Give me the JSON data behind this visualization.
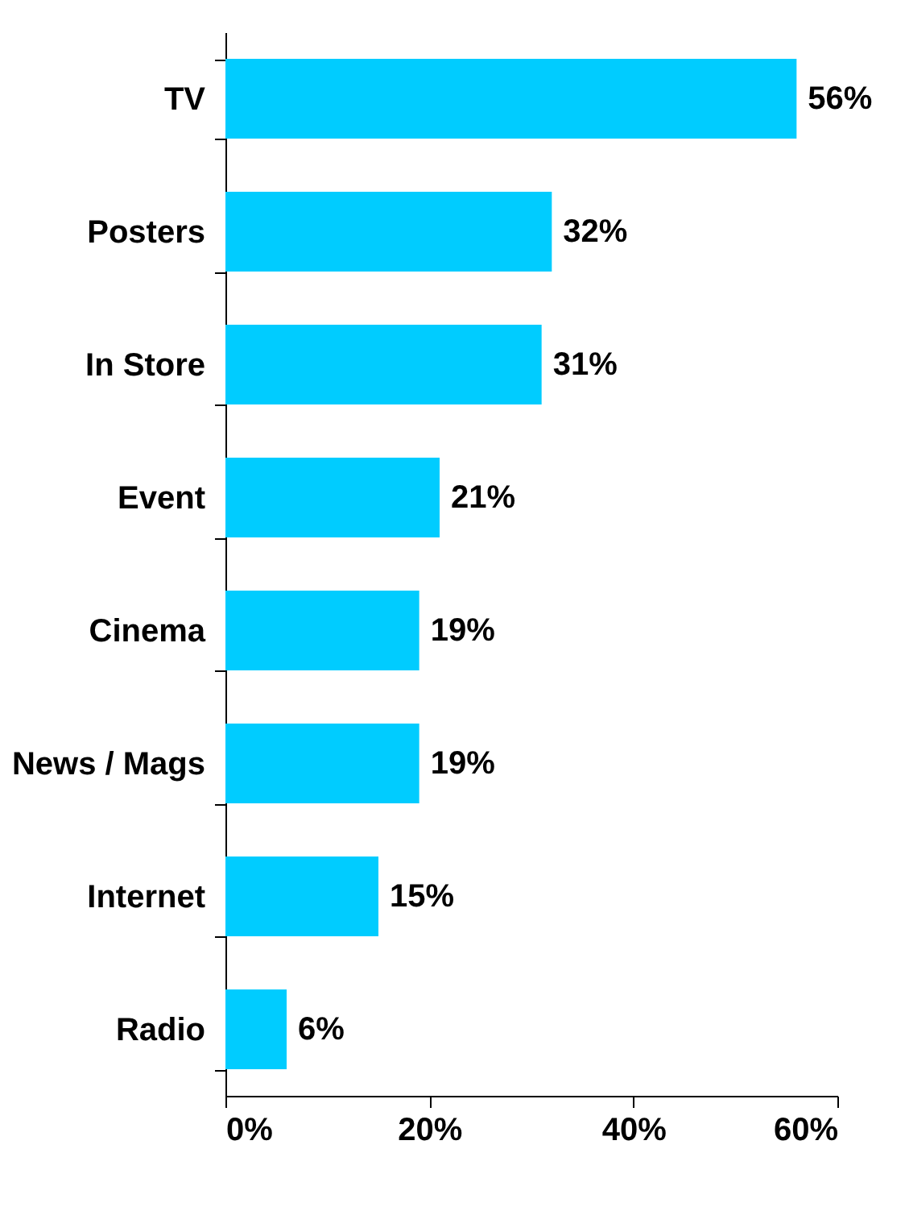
{
  "chart_data": {
    "type": "bar",
    "orientation": "horizontal",
    "categories": [
      "TV",
      "Posters",
      "In Store",
      "Event",
      "Cinema",
      "News / Mags",
      "Internet",
      "Radio"
    ],
    "values": [
      56,
      32,
      31,
      21,
      19,
      19,
      15,
      6
    ],
    "value_labels": [
      "56%",
      "32%",
      "31%",
      "21%",
      "19%",
      "19%",
      "15%",
      "6%"
    ],
    "color": "#00ccff",
    "xlim": [
      0,
      60
    ],
    "xticks": [
      {
        "value": 0,
        "label": "0%"
      },
      {
        "value": 20,
        "label": "20%"
      },
      {
        "value": 40,
        "label": "40%"
      },
      {
        "value": 60,
        "label": "60%"
      }
    ],
    "grid": false
  }
}
